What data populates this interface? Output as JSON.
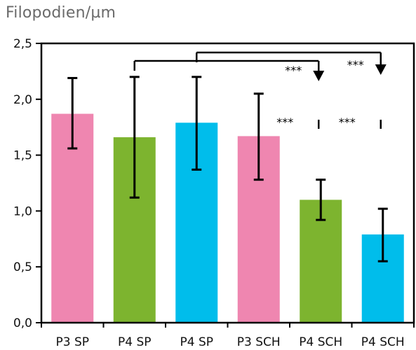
{
  "chart_data": {
    "type": "bar",
    "ylabel": "Filopodien/µm",
    "ylim": [
      0,
      2.5
    ],
    "yticks": [
      "0,0",
      "0,5",
      "1,0",
      "1,5",
      "2,0",
      "2,5"
    ],
    "ytick_values": [
      0,
      0.5,
      1.0,
      1.5,
      2.0,
      2.5
    ],
    "grid": false,
    "categories": [
      "P3 SP",
      "P4 SP",
      "P4 SP",
      "P3 SCH",
      "P4 SCH",
      "P4 SCH"
    ],
    "values": [
      1.87,
      1.66,
      1.79,
      1.67,
      1.1,
      0.79
    ],
    "error_low": [
      1.56,
      1.12,
      1.37,
      1.28,
      0.92,
      0.55
    ],
    "error_high": [
      2.19,
      2.2,
      2.2,
      2.05,
      1.28,
      1.02
    ],
    "bar_colors": [
      "#ef86b0",
      "#7db42f",
      "#00bdeb",
      "#ef86b0",
      "#7db42f",
      "#00bdeb"
    ],
    "significance": [
      {
        "label": "***",
        "type": "arrow",
        "from": 1,
        "to": 4
      },
      {
        "label": "***",
        "type": "arrow",
        "from": 2,
        "to": 5
      },
      {
        "label": "***",
        "type": "mark",
        "at": 4
      },
      {
        "label": "***",
        "type": "mark",
        "at": 5
      }
    ]
  }
}
